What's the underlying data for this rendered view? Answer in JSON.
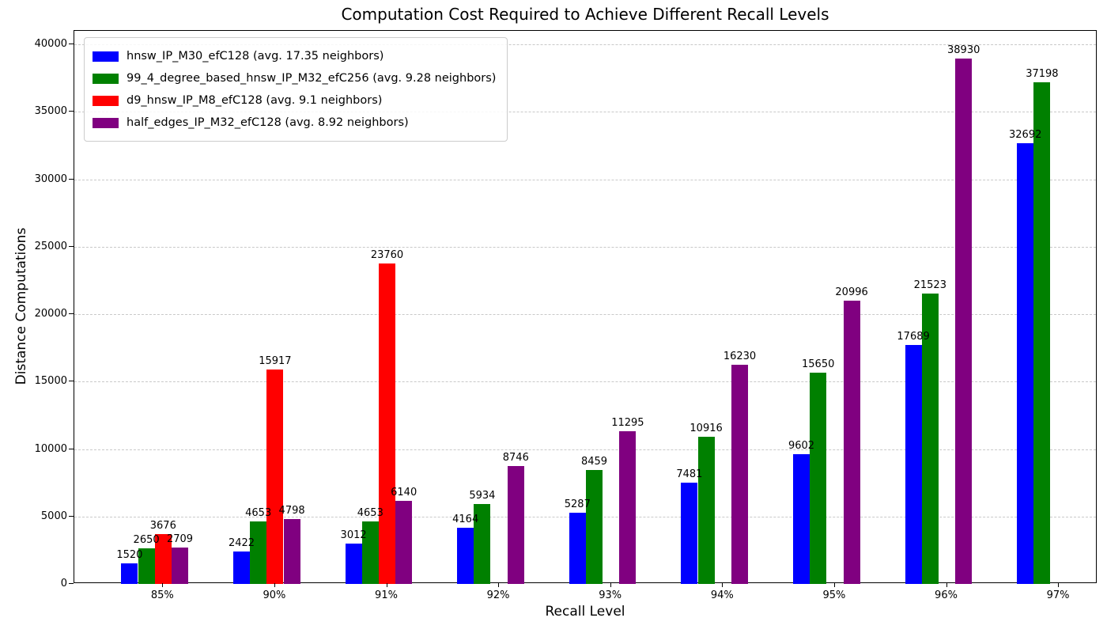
{
  "chart_data": {
    "type": "bar",
    "title": "Computation Cost Required to Achieve Different Recall Levels",
    "xlabel": "Recall Level",
    "ylabel": "Distance Computations",
    "categories": [
      "85%",
      "90%",
      "91%",
      "92%",
      "93%",
      "94%",
      "95%",
      "96%",
      "97%"
    ],
    "series": [
      {
        "name": "hnsw_IP_M30_efC128 (avg. 17.35 neighbors)",
        "color": "#0000ff",
        "values": [
          1520,
          2422,
          3012,
          4164,
          5287,
          7481,
          9602,
          17689,
          32692
        ]
      },
      {
        "name": "99_4_degree_based_hnsw_IP_M32_efC256 (avg. 9.28 neighbors)",
        "color": "#008000",
        "values": [
          2650,
          4653,
          4653,
          5934,
          8459,
          10916,
          15650,
          21523,
          37198
        ]
      },
      {
        "name": "d9_hnsw_IP_M8_efC128 (avg. 9.1 neighbors)",
        "color": "#ff0000",
        "values": [
          3676,
          15917,
          23760,
          null,
          null,
          null,
          null,
          null,
          null
        ]
      },
      {
        "name": "half_edges_IP_M32_efC128 (avg. 8.92 neighbors)",
        "color": "#800080",
        "values": [
          2709,
          4798,
          6140,
          8746,
          11295,
          16230,
          20996,
          38930,
          null
        ]
      }
    ],
    "ylim": [
      0,
      41000
    ],
    "yticks": [
      0,
      5000,
      10000,
      15000,
      20000,
      25000,
      30000,
      35000,
      40000
    ],
    "grid": "horizontal-dashed",
    "legend_position": "upper-left",
    "bar_value_labels": true
  }
}
